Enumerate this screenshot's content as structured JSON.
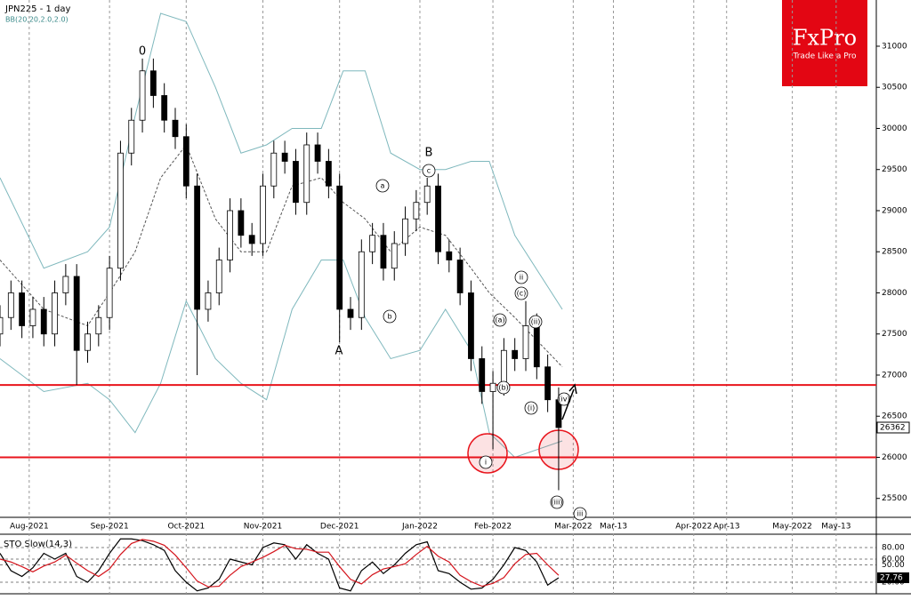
{
  "chart_data": [
    {
      "type": "candlestick",
      "title": "JPN225 - 1 day",
      "subtitle": "BB(20,20,2.0,2.0)",
      "x": [
        0,
        3,
        6,
        9,
        12,
        15,
        18,
        21,
        24,
        27,
        30,
        33,
        36,
        39,
        42,
        45,
        48,
        51,
        54,
        57,
        60,
        63,
        66,
        69,
        72,
        75,
        78,
        81,
        84,
        87,
        90,
        93,
        96,
        99,
        102,
        105,
        108,
        111,
        114,
        117,
        120,
        123,
        126,
        129,
        132,
        135,
        138,
        141,
        144,
        147,
        150,
        153
      ],
      "open": [
        27500,
        27700,
        28000,
        27600,
        27800,
        27500,
        28000,
        28200,
        27300,
        27500,
        27700,
        28300,
        29700,
        30100,
        30700,
        30400,
        30100,
        29900,
        29300,
        27800,
        28000,
        28400,
        29000,
        28700,
        28600,
        29300,
        29700,
        29600,
        29100,
        29800,
        29600,
        29300,
        27800,
        27700,
        28500,
        28700,
        28300,
        28600,
        28900,
        29100,
        29300,
        28500,
        28400,
        28000,
        27200,
        26800,
        26900,
        27300,
        27200,
        27600,
        27100,
        26700
      ],
      "high": [
        27850,
        28150,
        28150,
        27950,
        27950,
        28150,
        28350,
        28350,
        27650,
        27850,
        28450,
        29850,
        30250,
        30850,
        30850,
        30550,
        30250,
        30050,
        29450,
        28150,
        28550,
        29150,
        29150,
        28850,
        29450,
        29850,
        29850,
        29750,
        29950,
        29950,
        29750,
        29450,
        27950,
        28650,
        28850,
        28850,
        28750,
        29050,
        29250,
        29400,
        29450,
        28650,
        28550,
        28150,
        27350,
        27050,
        27450,
        27450,
        27900,
        27750,
        27250,
        26850
      ],
      "low": [
        27350,
        27550,
        27450,
        27450,
        27350,
        27350,
        27850,
        26880,
        27150,
        27350,
        27550,
        28150,
        29550,
        29950,
        30250,
        29950,
        29750,
        29150,
        27000,
        27650,
        27850,
        28250,
        28550,
        28450,
        28450,
        29150,
        29450,
        28950,
        28950,
        29450,
        29150,
        27400,
        27550,
        27550,
        28350,
        28150,
        28150,
        28450,
        28750,
        28950,
        28350,
        28250,
        27850,
        27050,
        26650,
        26100,
        26750,
        27050,
        27050,
        26950,
        26550,
        25600
      ],
      "close": [
        27700,
        28000,
        27600,
        27800,
        27500,
        28000,
        28200,
        27300,
        27500,
        27700,
        28300,
        29700,
        30100,
        30700,
        30400,
        30100,
        29900,
        29300,
        27800,
        28000,
        28400,
        29000,
        28700,
        28600,
        29300,
        29700,
        29600,
        29100,
        29800,
        29600,
        29300,
        27800,
        27700,
        28500,
        28700,
        28300,
        28600,
        28900,
        29100,
        29300,
        28500,
        28400,
        28000,
        27200,
        26800,
        26900,
        27300,
        27200,
        27600,
        27100,
        26700,
        26362
      ],
      "bands": {
        "x": [
          0,
          12,
          24,
          30,
          37,
          44,
          51,
          59,
          66,
          73,
          80,
          88,
          94,
          100,
          107,
          115,
          122,
          129,
          134,
          141,
          154
        ],
        "series": [
          {
            "color": "#7fb8bd",
            "dash": false,
            "values": [
              29400,
              28300,
              28500,
              28800,
              30150,
              31400,
              31300,
              30500,
              29700,
              29800,
              30000,
              30000,
              30700,
              30700,
              29700,
              29500,
              29500,
              29600,
              29600,
              28700,
              27800
            ]
          },
          {
            "color": "#555555",
            "dash": true,
            "values": [
              28400,
              27800,
              27600,
              28000,
              28500,
              29400,
              29800,
              28900,
              28500,
              28500,
              29300,
              29400,
              29100,
              28900,
              28500,
              28800,
              28700,
              28300,
              28000,
              27700,
              27100
            ]
          },
          {
            "color": "#7fb8bd",
            "dash": false,
            "values": [
              27200,
              26800,
              26900,
              26700,
              26300,
              26900,
              27900,
              27200,
              26900,
              26700,
              27800,
              28400,
              28400,
              27700,
              27200,
              27300,
              27800,
              27300,
              26300,
              26000,
              26200
            ]
          }
        ]
      },
      "levels": [
        26880,
        26000
      ],
      "level_color": "#e8141c",
      "xlim": [
        0,
        240
      ],
      "ylim": [
        25270,
        31562
      ],
      "yticks": [
        25500,
        26000,
        26500,
        27000,
        27500,
        28000,
        28500,
        29000,
        29500,
        30000,
        30500,
        31000
      ],
      "xticks": [
        {
          "value": 8,
          "label": "Aug-2021"
        },
        {
          "value": 30,
          "label": "Sep-2021"
        },
        {
          "value": 51,
          "label": "Oct-2021"
        },
        {
          "value": 72,
          "label": "Nov-2021"
        },
        {
          "value": 93,
          "label": "Dec-2021"
        },
        {
          "value": 115,
          "label": "Jan-2022"
        },
        {
          "value": 135,
          "label": "Feb-2022"
        },
        {
          "value": 157,
          "label": "Mar-2022"
        },
        {
          "value": 168,
          "label": "Mar-13"
        },
        {
          "value": 190,
          "label": "Apr-2022"
        },
        {
          "value": 199,
          "label": "Apr-13"
        },
        {
          "value": 217,
          "label": "May-2022"
        },
        {
          "value": 229,
          "label": "May-13"
        }
      ],
      "annotations": [
        "0",
        "A",
        "B",
        "a",
        "b",
        "c",
        "(a)",
        "(b)",
        "(c)",
        "i",
        "(i)",
        "ii",
        "(ii)",
        "(iv)",
        "(iii)",
        "iii"
      ],
      "brand": {
        "name": "FxPro",
        "tagline": "Trade Like a Pro"
      }
    },
    {
      "type": "line",
      "title": "STO Slow(14,3)",
      "x": [
        0,
        3,
        6,
        9,
        12,
        15,
        18,
        21,
        24,
        27,
        30,
        33,
        36,
        39,
        42,
        45,
        48,
        51,
        54,
        57,
        60,
        63,
        66,
        69,
        72,
        75,
        78,
        81,
        84,
        87,
        90,
        93,
        96,
        99,
        102,
        105,
        108,
        111,
        114,
        117,
        120,
        123,
        126,
        129,
        132,
        135,
        138,
        141,
        144,
        147,
        150,
        153
      ],
      "series": [
        {
          "color": "#000000",
          "values": [
            70,
            40,
            30,
            45,
            70,
            60,
            70,
            30,
            20,
            40,
            70,
            95,
            95,
            92,
            85,
            75,
            40,
            20,
            5,
            10,
            25,
            60,
            55,
            50,
            80,
            88,
            85,
            60,
            85,
            70,
            60,
            10,
            5,
            40,
            55,
            35,
            50,
            70,
            85,
            90,
            40,
            35,
            20,
            8,
            10,
            25,
            50,
            80,
            75,
            55,
            15,
            27.76
          ]
        },
        {
          "color": "#d4141c",
          "values": [
            60,
            55,
            47,
            38,
            48,
            55,
            67,
            53,
            40,
            30,
            43,
            68,
            87,
            94,
            91,
            84,
            67,
            45,
            22,
            12,
            13,
            32,
            47,
            55,
            63,
            73,
            84,
            78,
            77,
            72,
            72,
            47,
            25,
            17,
            33,
            43,
            47,
            52,
            68,
            82,
            65,
            55,
            32,
            21,
            13,
            18,
            28,
            52,
            68,
            70,
            50,
            32
          ]
        }
      ],
      "xlim": [
        0,
        240
      ],
      "ylim": [
        0,
        100
      ],
      "yticks": [
        {
          "value": 80,
          "label": "80.00"
        },
        {
          "value": 60,
          "label": "60.00"
        },
        {
          "value": 50,
          "label": "50.00"
        },
        {
          "value": 20,
          "label": "20.00"
        }
      ]
    }
  ]
}
